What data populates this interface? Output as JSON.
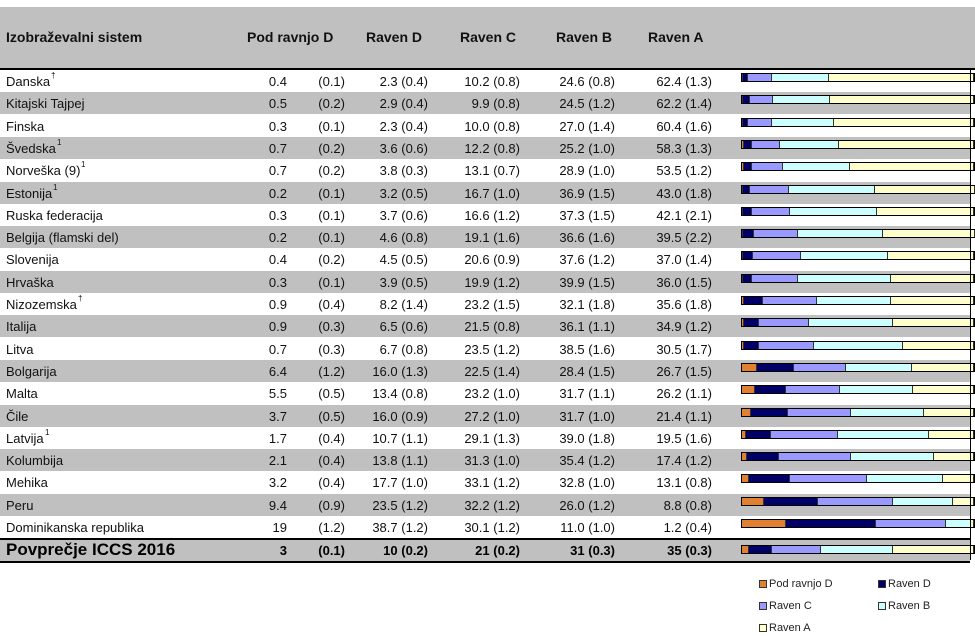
{
  "chart_data": {
    "type": "bar",
    "stacked": true,
    "orientation": "horizontal",
    "columns": [
      "Izobraževalni sistem",
      "Pod ravnjo D",
      "Raven D",
      "Raven C",
      "Raven B",
      "Raven A"
    ],
    "series_names": [
      "Pod ravnjo D",
      "Raven D",
      "Raven C",
      "Raven B",
      "Raven A"
    ],
    "colors": [
      "#e08030",
      "#000066",
      "#9999ff",
      "#ccffff",
      "#ffffcc"
    ],
    "rows": [
      {
        "name": "Danska",
        "sup": "†",
        "v": [
          "0.4",
          "2.3",
          "10.2",
          "24.6",
          "62.4"
        ],
        "se": [
          "(0.1)",
          "(0.4)",
          "(0.8)",
          "(0.8)",
          "(1.3)"
        ]
      },
      {
        "name": "Kitajski Tajpej",
        "sup": "",
        "v": [
          "0.5",
          "2.9",
          "9.9",
          "24.5",
          "62.2"
        ],
        "se": [
          "(0.2)",
          "(0.4)",
          "(0.8)",
          "(1.2)",
          "(1.4)"
        ]
      },
      {
        "name": "Finska",
        "sup": "",
        "v": [
          "0.3",
          "2.3",
          "10.0",
          "27.0",
          "60.4"
        ],
        "se": [
          "(0.1)",
          "(0.4)",
          "(0.8)",
          "(1.4)",
          "(1.6)"
        ]
      },
      {
        "name": "Švedska ",
        "sup": "1",
        "v": [
          "0.7",
          "3.6",
          "12.2",
          "25.2",
          "58.3"
        ],
        "se": [
          "(0.2)",
          "(0.6)",
          "(0.8)",
          "(1.0)",
          "(1.3)"
        ]
      },
      {
        "name": "Norveška (9)",
        "sup": "1",
        "v": [
          "0.7",
          "3.8",
          "13.1",
          "28.9",
          "53.5"
        ],
        "se": [
          "(0.2)",
          "(0.3)",
          "(0.7)",
          "(1.0)",
          "(1.2)"
        ]
      },
      {
        "name": "Estonija",
        "sup": "1",
        "v": [
          "0.2",
          "3.2",
          "16.7",
          "36.9",
          "43.0"
        ],
        "se": [
          "(0.1)",
          "(0.5)",
          "(1.0)",
          "(1.5)",
          "(1.8)"
        ]
      },
      {
        "name": "Ruska federacija",
        "sup": "",
        "v": [
          "0.3",
          "3.7",
          "16.6",
          "37.3",
          "42.1"
        ],
        "se": [
          "(0.1)",
          "(0.6)",
          "(1.2)",
          "(1.5)",
          "(2.1)"
        ]
      },
      {
        "name": "Belgija (flamski del)",
        "sup": "",
        "v": [
          "0.2",
          "4.6",
          "19.1",
          "36.6",
          "39.5"
        ],
        "se": [
          "(0.1)",
          "(0.8)",
          "(1.6)",
          "(1.6)",
          "(2.2)"
        ]
      },
      {
        "name": "Slovenija",
        "sup": "",
        "v": [
          "0.4",
          "4.5",
          "20.6",
          "37.6",
          "37.0"
        ],
        "se": [
          "(0.2)",
          "(0.5)",
          "(0.9)",
          "(1.2)",
          "(1.4)"
        ]
      },
      {
        "name": "Hrvaška",
        "sup": "",
        "v": [
          "0.3",
          "3.9",
          "19.9",
          "39.9",
          "36.0"
        ],
        "se": [
          "(0.1)",
          "(0.5)",
          "(1.2)",
          "(1.5)",
          "(1.5)"
        ]
      },
      {
        "name": "Nizozemska",
        "sup": "†",
        "v": [
          "0.9",
          "8.2",
          "23.2",
          "32.1",
          "35.6"
        ],
        "se": [
          "(0.4)",
          "(1.4)",
          "(1.5)",
          "(1.8)",
          "(1.8)"
        ]
      },
      {
        "name": "Italija",
        "sup": "",
        "v": [
          "0.9",
          "6.5",
          "21.5",
          "36.1",
          "34.9"
        ],
        "se": [
          "(0.3)",
          "(0.6)",
          "(0.8)",
          "(1.1)",
          "(1.2)"
        ]
      },
      {
        "name": "Litva",
        "sup": "",
        "v": [
          "0.7",
          "6.7",
          "23.5",
          "38.5",
          "30.5"
        ],
        "se": [
          "(0.3)",
          "(0.8)",
          "(1.2)",
          "(1.6)",
          "(1.7)"
        ]
      },
      {
        "name": "Bolgarija",
        "sup": "",
        "v": [
          "6.4",
          "16.0",
          "22.5",
          "28.4",
          "26.7"
        ],
        "se": [
          "(1.2)",
          "(1.3)",
          "(1.4)",
          "(1.5)",
          "(1.5)"
        ]
      },
      {
        "name": "Malta",
        "sup": "",
        "v": [
          "5.5",
          "13.4",
          "23.2",
          "31.7",
          "26.2"
        ],
        "se": [
          "(0.5)",
          "(0.8)",
          "(1.0)",
          "(1.1)",
          "(1.1)"
        ]
      },
      {
        "name": "Čile",
        "sup": "",
        "v": [
          "3.7",
          "16.0",
          "27.2",
          "31.7",
          "21.4"
        ],
        "se": [
          "(0.5)",
          "(0.9)",
          "(1.0)",
          "(1.0)",
          "(1.1)"
        ]
      },
      {
        "name": "Latvija",
        "sup": "1",
        "v": [
          "1.7",
          "10.7",
          "29.1",
          "39.0",
          "19.5"
        ],
        "se": [
          "(0.4)",
          "(1.1)",
          "(1.3)",
          "(1.8)",
          "(1.6)"
        ]
      },
      {
        "name": "Kolumbija",
        "sup": "",
        "v": [
          "2.1",
          "13.8",
          "31.3",
          "35.4",
          "17.4"
        ],
        "se": [
          "(0.4)",
          "(1.1)",
          "(1.0)",
          "(1.2)",
          "(1.2)"
        ]
      },
      {
        "name": "Mehika",
        "sup": "",
        "v": [
          "3.2",
          "17.7",
          "33.1",
          "32.8",
          "13.1"
        ],
        "se": [
          "(0.4)",
          "(1.0)",
          "(1.2)",
          "(1.0)",
          "(0.8)"
        ]
      },
      {
        "name": "Peru",
        "sup": "",
        "v": [
          "9.4",
          "23.5",
          "32.2",
          "26.0",
          "8.8"
        ],
        "se": [
          "(0.9)",
          "(1.2)",
          "(1.2)",
          "(1.2)",
          "(0.8)"
        ]
      },
      {
        "name": "Dominikanska republika",
        "sup": "",
        "v": [
          "19",
          "38.7",
          "30.1",
          "11.0",
          "1.2"
        ],
        "se": [
          "(1.2)",
          "(1.2)",
          "(1.2)",
          "(1.0)",
          "(0.4)"
        ]
      }
    ],
    "average": {
      "name": "Povprečje ICCS 2016",
      "v": [
        "3",
        "10",
        "21",
        "31",
        "35"
      ],
      "se": [
        "(0.1)",
        "(0.2)",
        "(0.2)",
        "(0.3)",
        "(0.3)"
      ]
    },
    "xlim": [
      0,
      100
    ],
    "legend_position": "bottom-right"
  }
}
